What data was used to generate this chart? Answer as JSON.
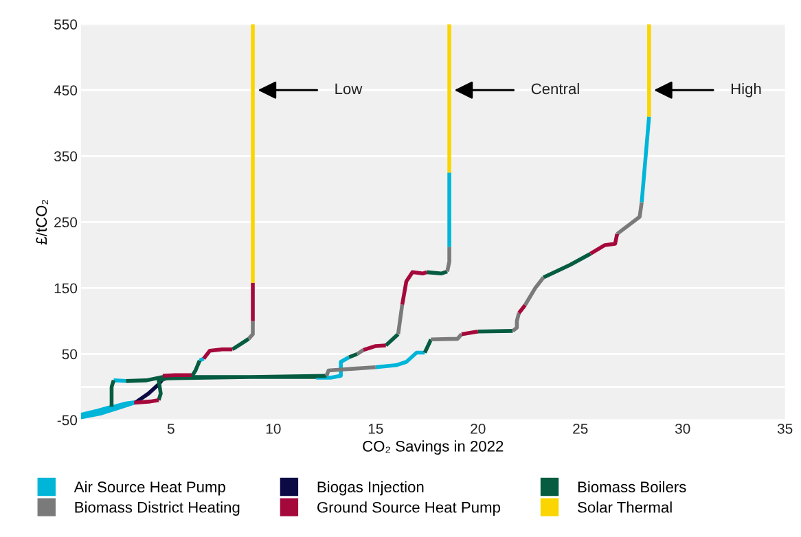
{
  "chart_data": {
    "type": "line",
    "xlabel": "CO₂ Savings in 2022",
    "ylabel": "£/tCO₂",
    "xlim": [
      0.6,
      35
    ],
    "xticks": [
      5,
      10,
      15,
      20,
      25,
      30,
      35
    ],
    "ylim": [
      -50,
      550
    ],
    "yticks": [
      -50,
      50,
      150,
      250,
      350,
      450,
      550
    ],
    "grid": "y",
    "legend": "bottom",
    "marker": "none",
    "line_style": "solid",
    "ref_lines": [
      {
        "axis": "y",
        "value": 0,
        "color": "#ffffff"
      }
    ],
    "annotations": [
      {
        "text": "Low",
        "x": 9.25,
        "y": 450
      },
      {
        "text": "Central",
        "x": 18.85,
        "y": 450
      },
      {
        "text": "High",
        "x": 28.6,
        "y": 450
      }
    ],
    "series": [
      {
        "name": "Air Source Heat Pump",
        "color": "#00b5d8",
        "x": [
          0.6,
          1.3,
          1.8,
          2.3,
          2.8,
          3.3,
          null,
          6.4,
          6.6,
          null,
          0.6,
          1.4,
          2.1,
          null,
          2.2,
          2.8,
          null,
          12.1,
          12.8,
          13.3,
          13.3,
          13.7,
          null,
          18.6,
          18.6,
          null,
          0.6,
          1.6,
          2.4,
          3.2,
          null,
          15.0,
          16.0,
          16.5,
          17.0,
          17.4,
          null,
          28.0,
          28.36
        ],
        "values": [
          -44,
          -40,
          -33,
          -29,
          -25,
          -23,
          null,
          40,
          43,
          null,
          -42,
          -36,
          -30,
          null,
          10,
          9,
          null,
          14,
          14,
          17,
          38,
          45,
          null,
          212,
          325,
          null,
          -46,
          -40,
          -32,
          -24,
          null,
          30,
          33,
          38,
          52,
          52,
          null,
          280,
          410
        ]
      },
      {
        "name": "Biogas Injection",
        "color": "#0b0a45",
        "x": [
          3.3,
          3.9,
          4.4,
          4.6
        ],
        "values": [
          -23,
          -10,
          4,
          12
        ]
      },
      {
        "name": "Biomass Boilers",
        "color": "#055c41",
        "x": [
          6.0,
          6.2,
          6.4,
          null,
          8.0,
          8.4,
          8.8,
          null,
          2.1,
          2.1,
          2.2,
          null,
          2.8,
          3.8,
          4.6,
          12.1,
          null,
          13.7,
          14.1,
          null,
          15.5,
          16.1,
          null,
          17.5,
          18.2,
          18.5,
          null,
          4.4,
          4.5,
          4.4,
          4.8,
          12.6,
          null,
          17.4,
          17.6,
          17.7,
          null,
          20.0,
          21.7,
          null,
          23.2,
          24.5,
          25.5
        ],
        "values": [
          15,
          25,
          40,
          null,
          57,
          65,
          73,
          null,
          -30,
          0,
          10,
          null,
          9,
          10,
          15,
          15,
          null,
          45,
          50,
          null,
          63,
          80,
          null,
          174,
          172,
          175,
          null,
          -20,
          -10,
          10,
          13,
          17,
          null,
          52,
          65,
          72,
          null,
          84,
          85,
          null,
          166,
          185,
          202
        ]
      },
      {
        "name": "Biomass District Heating",
        "color": "#7a7a7a",
        "x": [
          8.8,
          9.0,
          9.0,
          null,
          14.1,
          14.4,
          null,
          16.1,
          16.3,
          null,
          18.5,
          18.6,
          18.6,
          null,
          12.6,
          12.7,
          15.0,
          null,
          17.7,
          19.0,
          19.2,
          null,
          21.7,
          21.9,
          21.9,
          22.0,
          null,
          22.3,
          22.8,
          23.2,
          null,
          26.8,
          27.9,
          28.0
        ],
        "values": [
          73,
          80,
          100,
          null,
          50,
          56,
          null,
          80,
          125,
          null,
          175,
          190,
          212,
          null,
          17,
          25,
          30,
          null,
          72,
          73,
          80,
          null,
          85,
          90,
          100,
          112,
          null,
          124,
          150,
          166,
          null,
          232,
          258,
          280
        ]
      },
      {
        "name": "Ground Source Heat Pump",
        "color": "#a5093b",
        "x": [
          4.6,
          5.2,
          6.0,
          null,
          6.6,
          6.9,
          7.5,
          8.0,
          null,
          9.0,
          9.0,
          null,
          14.4,
          15.0,
          15.5,
          null,
          16.3,
          16.5,
          16.8,
          17.3,
          17.5,
          null,
          3.2,
          4.0,
          4.4,
          null,
          19.2,
          20.0,
          null,
          22.0,
          22.3,
          null,
          25.5,
          26.2,
          26.7,
          26.8
        ],
        "values": [
          17,
          18,
          18,
          null,
          43,
          55,
          57,
          57,
          null,
          100,
          158,
          null,
          56,
          62,
          63,
          null,
          125,
          160,
          174,
          172,
          174,
          null,
          -24,
          -22,
          -20,
          null,
          80,
          84,
          null,
          112,
          124,
          null,
          202,
          215,
          217,
          232
        ]
      },
      {
        "name": "Solar Thermal",
        "color": "#fbd500",
        "x": [
          9.0,
          9.0,
          null,
          18.6,
          18.6,
          null,
          28.36,
          28.36
        ],
        "values": [
          158,
          550,
          null,
          325,
          550,
          null,
          410,
          550
        ]
      }
    ]
  }
}
